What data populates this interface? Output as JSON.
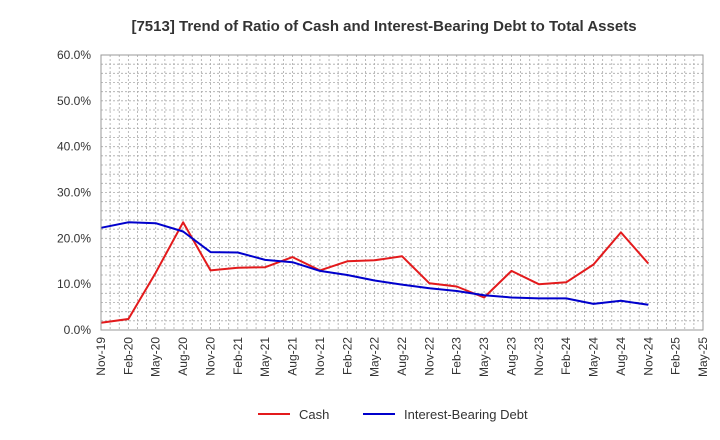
{
  "chart_data": {
    "type": "line",
    "title": "[7513]  Trend of Ratio of Cash and Interest-Bearing Debt to Total Assets",
    "xlabel": "",
    "ylabel": "",
    "ylim": [
      0,
      60
    ],
    "grid": true,
    "legend_position": "bottom",
    "x_ticks": [
      "Nov-19",
      "Feb-20",
      "May-20",
      "Aug-20",
      "Nov-20",
      "Feb-21",
      "May-21",
      "Aug-21",
      "Nov-21",
      "Feb-22",
      "May-22",
      "Aug-22",
      "Nov-22",
      "Feb-23",
      "May-23",
      "Aug-23",
      "Nov-23",
      "Feb-24",
      "May-24",
      "Aug-24",
      "Nov-24",
      "Feb-25",
      "May-25"
    ],
    "y_ticks": [
      "0.0%",
      "10.0%",
      "20.0%",
      "30.0%",
      "40.0%",
      "50.0%",
      "60.0%"
    ],
    "series": [
      {
        "name": "Cash",
        "color": "#e31a1c",
        "values": [
          1.6,
          2.4,
          12.5,
          23.5,
          13.0,
          13.6,
          13.7,
          15.9,
          13.0,
          15.0,
          15.2,
          16.1,
          10.2,
          9.5,
          7.1,
          12.9,
          10.0,
          10.4,
          14.3,
          21.3,
          14.5
        ]
      },
      {
        "name": "Interest-Bearing Debt",
        "color": "#0000cc",
        "values": [
          22.3,
          23.5,
          23.3,
          21.5,
          17.0,
          16.9,
          15.3,
          14.8,
          12.9,
          12.0,
          10.8,
          9.9,
          9.1,
          8.5,
          7.6,
          7.1,
          6.9,
          6.9,
          5.7,
          6.4,
          5.5
        ]
      }
    ]
  }
}
